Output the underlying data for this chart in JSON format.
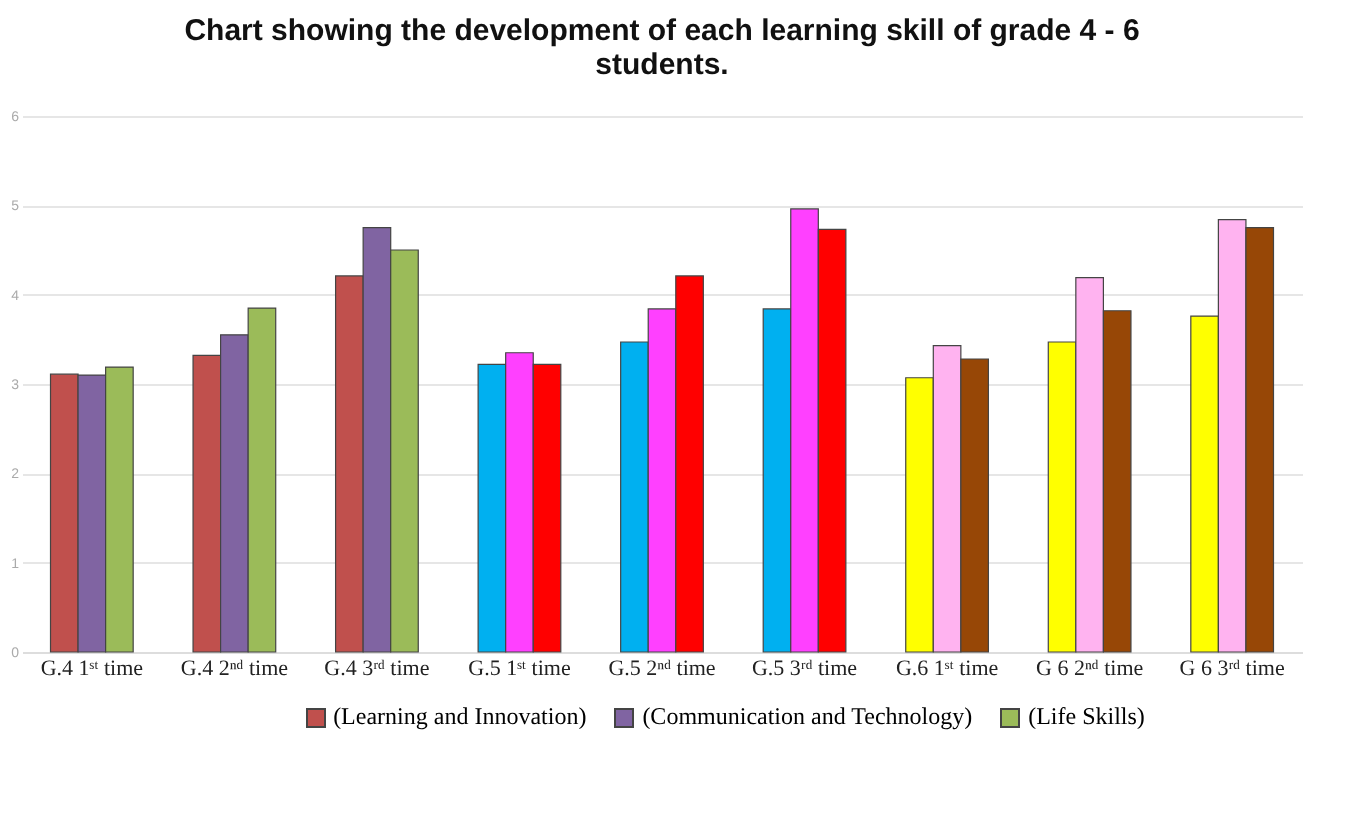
{
  "chart_data": {
    "type": "bar",
    "title": "Chart showing the development of each learning skill of grade 4 - 6 students.",
    "categories": [
      "G.4 1ˢᵗ time",
      "G.4 2ⁿᵈ time",
      "G.4 3ʳᵈ time",
      "G.5 1ˢᵗ time",
      "G.5 2ⁿᵈ time",
      "G.5 3ʳᵈ time",
      "G.6 1ˢᵗ time",
      "G 6 2ⁿᵈ time",
      "G 6 3ʳᵈ time"
    ],
    "series": [
      {
        "name": "(Learning and Innovation)",
        "color": "#c0504d",
        "colors": [
          "#c0504d",
          "#c0504d",
          "#c0504d",
          "#00b0f0",
          "#00b0f0",
          "#00b0f0",
          "#ffff00",
          "#ffff00",
          "#ffff00"
        ],
        "values": [
          3.11,
          3.32,
          4.21,
          3.22,
          3.47,
          3.84,
          3.07,
          3.47,
          3.76
        ]
      },
      {
        "name": "(Communication and Technology)",
        "color": "#8064a2",
        "colors": [
          "#8064a2",
          "#8064a2",
          "#8064a2",
          "#ff40ff",
          "#ff40ff",
          "#ff40ff",
          "#ffb3f0",
          "#ffb3f0",
          "#ffb3f0"
        ],
        "values": [
          3.1,
          3.55,
          4.75,
          3.35,
          3.84,
          4.96,
          3.43,
          4.19,
          4.84
        ]
      },
      {
        "name": "(Life Skills)",
        "color": "#9bbb59",
        "colors": [
          "#9bbb59",
          "#9bbb59",
          "#9bbb59",
          "#ff0000",
          "#ff0000",
          "#ff0000",
          "#974706",
          "#974706",
          "#974706"
        ],
        "values": [
          3.19,
          3.85,
          4.5,
          3.22,
          4.21,
          4.73,
          3.28,
          3.82,
          4.75
        ]
      }
    ],
    "ylim": [
      0,
      6
    ],
    "yticks": [
      0,
      1,
      2,
      3,
      4,
      5,
      6
    ],
    "grid": "y",
    "legend": "bottom"
  }
}
